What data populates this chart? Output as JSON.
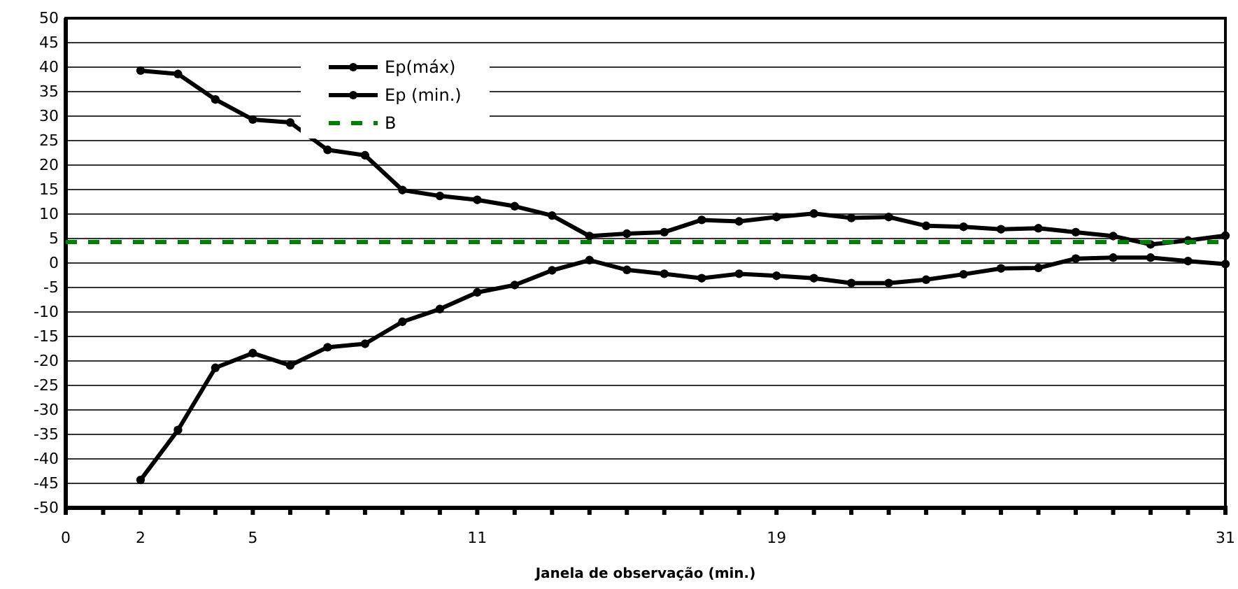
{
  "chart_data": {
    "type": "line",
    "xlabel": "Janela de observação (min.)",
    "x": [
      2,
      3,
      4,
      5,
      6,
      7,
      8,
      9,
      10,
      11,
      12,
      13,
      14,
      15,
      16,
      17,
      18,
      19,
      20,
      21,
      22,
      23,
      24,
      25,
      26,
      27,
      28,
      29,
      30,
      31
    ],
    "series": [
      {
        "name": "Ep(máx)",
        "color": "#000000",
        "values": [
          39.3,
          38.6,
          33.4,
          29.3,
          28.7,
          23.1,
          22.0,
          14.9,
          13.7,
          12.9,
          11.6,
          9.7,
          5.5,
          6.0,
          6.3,
          8.8,
          8.5,
          9.4,
          10.1,
          9.2,
          9.4,
          7.6,
          7.4,
          6.9,
          7.1,
          6.3,
          5.5,
          3.8,
          4.6,
          5.6
        ]
      },
      {
        "name": "Ep (min.)",
        "color": "#000000",
        "values": [
          -44.3,
          -34.1,
          -21.4,
          -18.4,
          -20.9,
          -17.2,
          -16.5,
          -12.0,
          -9.4,
          -6.0,
          -4.5,
          -1.5,
          0.6,
          -1.4,
          -2.2,
          -3.1,
          -2.2,
          -2.6,
          -3.1,
          -4.1,
          -4.1,
          -3.4,
          -2.3,
          -1.1,
          -1.0,
          0.9,
          1.1,
          1.1,
          0.4,
          -0.2
        ]
      },
      {
        "name": "B",
        "color": "#008000",
        "x": [
          0,
          31
        ],
        "values": [
          4.3,
          4.3
        ],
        "marker": "none",
        "line_style": "dashed"
      }
    ],
    "xlim": [
      0,
      31
    ],
    "xticks": [
      0,
      {
        "value": 1,
        "label": null
      },
      2,
      {
        "value": 3,
        "label": null
      },
      {
        "value": 4,
        "label": null
      },
      5,
      {
        "value": 6,
        "label": null
      },
      {
        "value": 7,
        "label": null
      },
      {
        "value": 8,
        "label": null
      },
      {
        "value": 9,
        "label": null
      },
      {
        "value": 10,
        "label": null
      },
      11,
      {
        "value": 12,
        "label": null
      },
      {
        "value": 13,
        "label": null
      },
      {
        "value": 14,
        "label": null
      },
      {
        "value": 15,
        "label": null
      },
      {
        "value": 16,
        "label": null
      },
      {
        "value": 17,
        "label": null
      },
      {
        "value": 18,
        "label": null
      },
      19,
      {
        "value": 20,
        "label": null
      },
      {
        "value": 21,
        "label": null
      },
      {
        "value": 22,
        "label": null
      },
      {
        "value": 23,
        "label": null
      },
      {
        "value": 24,
        "label": null
      },
      {
        "value": 25,
        "label": null
      },
      {
        "value": 26,
        "label": null
      },
      {
        "value": 27,
        "label": null
      },
      {
        "value": 28,
        "label": null
      },
      {
        "value": 29,
        "label": null
      },
      {
        "value": 30,
        "label": null
      },
      31
    ],
    "ylim": [
      -50,
      50
    ],
    "yticks": [
      -50,
      -45,
      -40,
      -35,
      -30,
      -25,
      -20,
      -15,
      -10,
      -5,
      0,
      5,
      10,
      15,
      20,
      25,
      30,
      35,
      40,
      45,
      50
    ],
    "grid": "y",
    "legend": "top left",
    "marker": "circle",
    "line_style": "solid"
  }
}
